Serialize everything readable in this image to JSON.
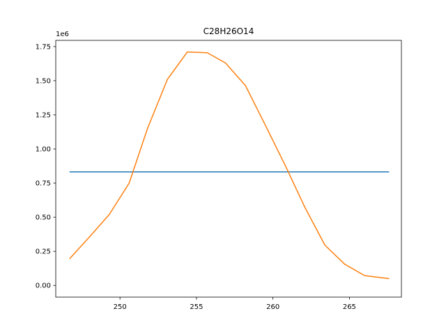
{
  "chart_data": {
    "type": "line",
    "title": "C28H26O14",
    "xlabel": "",
    "ylabel": "",
    "y_offset_label": "1e6",
    "xlim": [
      245.8,
      268.4
    ],
    "ylim": [
      -0.0855,
      1.7955
    ],
    "x_ticks": [
      250,
      255,
      260,
      265
    ],
    "x_tick_labels": [
      "250",
      "255",
      "260",
      "265"
    ],
    "y_ticks": [
      0,
      0.25,
      0.5,
      0.75,
      1.0,
      1.25,
      1.5,
      1.75
    ],
    "y_tick_labels": [
      "0.00",
      "0.25",
      "0.50",
      "0.75",
      "1.00",
      "1.25",
      "1.50",
      "1.75"
    ],
    "grid": false,
    "series": [
      {
        "color": "#1f77b4",
        "x": [
          246.7,
          267.6
        ],
        "y": [
          0.832,
          0.832
        ]
      },
      {
        "color": "#ff7f0e",
        "x": [
          246.7,
          248.0,
          249.3,
          250.6,
          251.8,
          253.1,
          254.4,
          255.7,
          256.9,
          258.2,
          259.5,
          260.8,
          262.1,
          263.4,
          264.7,
          266.0,
          267.6
        ],
        "y": [
          0.195,
          0.355,
          0.52,
          0.75,
          1.15,
          1.51,
          1.71,
          1.705,
          1.63,
          1.465,
          1.175,
          0.88,
          0.57,
          0.295,
          0.155,
          0.072,
          0.05
        ]
      }
    ]
  }
}
